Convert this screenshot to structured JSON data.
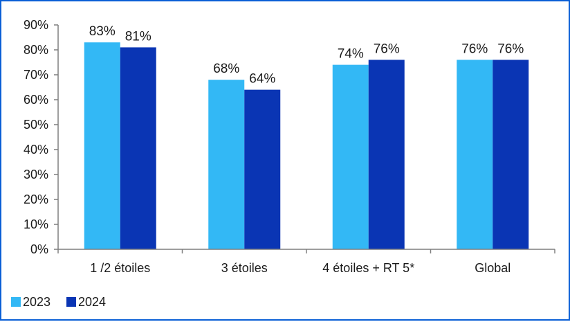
{
  "chart_data": {
    "type": "bar",
    "categories": [
      "1 /2 étoiles",
      "3 étoiles",
      "4 étoiles + RT 5*",
      "Global"
    ],
    "series": [
      {
        "name": "2023",
        "values": [
          83,
          68,
          74,
          76
        ],
        "labels": [
          "83%",
          "68%",
          "74%",
          "76%"
        ],
        "color": "#33b8f5"
      },
      {
        "name": "2024",
        "values": [
          81,
          64,
          76,
          76
        ],
        "labels": [
          "81%",
          "64%",
          "76%",
          "76%"
        ],
        "color": "#0a35b4"
      }
    ],
    "ylim": [
      0,
      90
    ],
    "yticks": [
      0,
      10,
      20,
      30,
      40,
      50,
      60,
      70,
      80,
      90
    ],
    "ytick_labels": [
      "0%",
      "10%",
      "20%",
      "30%",
      "40%",
      "50%",
      "60%",
      "70%",
      "80%",
      "90%"
    ],
    "grid": false,
    "legend_position": "bottom-left",
    "title": "",
    "xlabel": "",
    "ylabel": ""
  },
  "colors": {
    "border": "#0a5fd6",
    "axis": "#7f7f7f"
  }
}
